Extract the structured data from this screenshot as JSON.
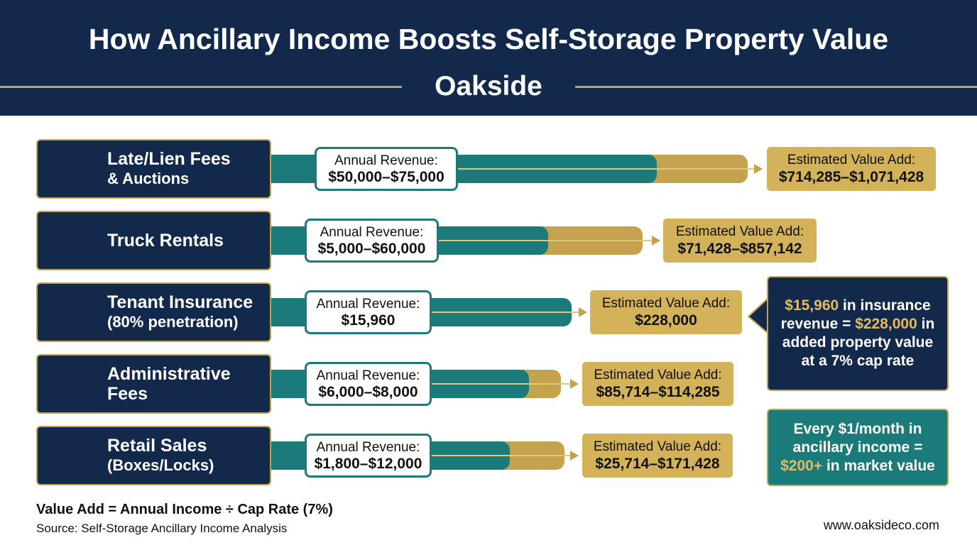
{
  "header": {
    "title": "How Ancillary Income Boosts Self-Storage Property Value",
    "subtitle": "Oakside"
  },
  "rows": [
    {
      "name": [
        "Late/Lien Fees",
        "& Auctions"
      ],
      "revenue_label": "Annual Revenue:",
      "revenue": "$50,000–$75,000",
      "value_label": "Estimated Value Add:",
      "value": "$714,285–$1,071,428"
    },
    {
      "name": [
        "Truck Rentals"
      ],
      "revenue_label": "Annual Revenue:",
      "revenue": "$5,000–$60,000",
      "value_label": "Estimated Value Add:",
      "value": "$71,428–$857,142"
    },
    {
      "name": [
        "Tenant Insurance",
        "(80% penetration)"
      ],
      "revenue_label": "Annual Revenue:",
      "revenue": "$15,960",
      "value_label": "Estimated Value Add:",
      "value": "$228,000"
    },
    {
      "name": [
        "Administrative",
        "Fees"
      ],
      "revenue_label": "Annual Revenue:",
      "revenue": "$6,000–$8,000",
      "value_label": "Estimated Value Add:",
      "value": "$85,714–$114,285"
    },
    {
      "name": [
        "Retail Sales",
        "(Boxes/Locks)"
      ],
      "revenue_label": "Annual Revenue:",
      "revenue": "$1,800–$12,000",
      "value_label": "Estimated Value Add:",
      "value": "$25,714–$171,428"
    }
  ],
  "callouts": [
    {
      "parts": [
        {
          "text": "$15,960",
          "color": "#e2bb62"
        },
        {
          "text": " in insurance revenue = ",
          "color": "#ffffff"
        },
        {
          "text": "$228,000",
          "color": "#e2bb62"
        },
        {
          "text": " in added property value at a 7% cap rate",
          "color": "#ffffff"
        }
      ]
    },
    {
      "parts": [
        {
          "text": "Every $1/month in ancillary income = ",
          "color": "#ffffff"
        },
        {
          "text": "$200+",
          "color": "#e2bb62"
        },
        {
          "text": " in market value",
          "color": "#ffffff"
        }
      ]
    }
  ],
  "footer": {
    "formula": "Value Add = Annual Income ÷ Cap Rate (7%)",
    "source": "Source: Self-Storage Ancillary Income Analysis",
    "website": "www.oaksideco.com"
  }
}
